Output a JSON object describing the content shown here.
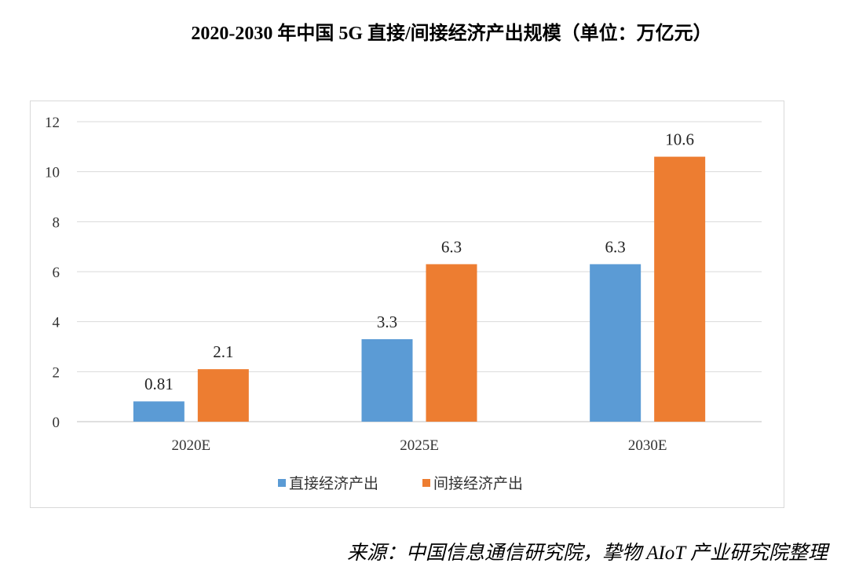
{
  "title": "2020-2030 年中国 5G 直接/间接经济产出规模（单位：万亿元）",
  "source": "来源：中国信息通信研究院，挚物 AIoT 产业研究院整理",
  "chart_data": {
    "type": "bar",
    "title": "2020-2030 年中国 5G 直接/间接经济产出规模（单位：万亿元）",
    "categories": [
      "2020E",
      "2025E",
      "2030E"
    ],
    "series": [
      {
        "name": "直接经济产出",
        "values": [
          0.81,
          3.3,
          6.3
        ],
        "labels": [
          "0.81",
          "3.3",
          "6.3"
        ],
        "color": "#5b9bd5"
      },
      {
        "name": "间接经济产出",
        "values": [
          2.1,
          6.3,
          10.6
        ],
        "labels": [
          "2.1",
          "6.3",
          "10.6"
        ],
        "color": "#ed7d31"
      }
    ],
    "ylim": [
      0,
      12
    ],
    "yticks": [
      "0",
      "2",
      "4",
      "6",
      "8",
      "10",
      "12"
    ],
    "grid": true,
    "legend": "bottom"
  }
}
